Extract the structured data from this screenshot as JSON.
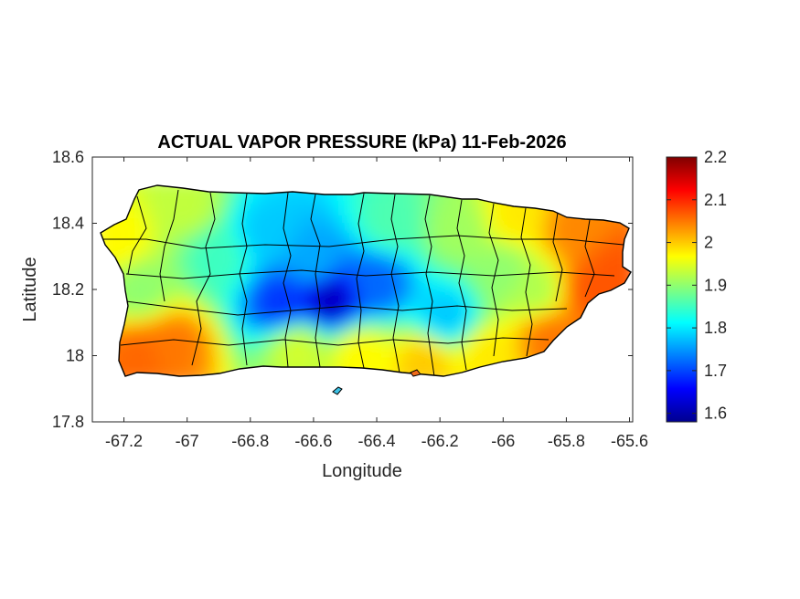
{
  "chart_data": {
    "type": "heatmap",
    "title": "ACTUAL VAPOR PRESSURE (kPa) 11-Feb-2026",
    "xlabel": "Longitude",
    "ylabel": "Latitude",
    "xlim": [
      -67.3,
      -65.59
    ],
    "ylim": [
      17.8,
      18.6
    ],
    "x_ticks": [
      -67.2,
      -67,
      -66.8,
      -66.6,
      -66.4,
      -66.2,
      -66,
      -65.8,
      -65.6
    ],
    "x_tick_labels": [
      "-67.2",
      "-67",
      "-66.8",
      "-66.6",
      "-66.4",
      "-66.2",
      "-66",
      "-65.8",
      "-65.6"
    ],
    "y_ticks": [
      17.8,
      18,
      18.2,
      18.4,
      18.6
    ],
    "y_tick_labels": [
      "17.8",
      "18",
      "18.2",
      "18.4",
      "18.6"
    ],
    "colorbar": {
      "colormap": "jet",
      "limits": [
        1.58,
        2.2
      ],
      "ticks": [
        1.6,
        1.7,
        1.8,
        1.9,
        2,
        2.1,
        2.2
      ],
      "tick_labels": [
        "1.6",
        "1.7",
        "1.8",
        "1.9",
        "2",
        "2.1",
        "2.2"
      ]
    },
    "grid": false,
    "legend": "none",
    "field_samples": [
      {
        "lon": -67.22,
        "lat": 18.35,
        "value": 1.97
      },
      {
        "lon": -67.0,
        "lat": 18.45,
        "value": 1.93
      },
      {
        "lon": -66.9,
        "lat": 18.3,
        "value": 1.85
      },
      {
        "lon": -66.75,
        "lat": 18.37,
        "value": 1.78
      },
      {
        "lon": -66.6,
        "lat": 18.28,
        "value": 1.76
      },
      {
        "lon": -66.55,
        "lat": 18.17,
        "value": 1.62
      },
      {
        "lon": -66.7,
        "lat": 18.16,
        "value": 1.69
      },
      {
        "lon": -66.4,
        "lat": 18.22,
        "value": 1.72
      },
      {
        "lon": -66.35,
        "lat": 18.4,
        "value": 1.86
      },
      {
        "lon": -66.15,
        "lat": 18.38,
        "value": 1.91
      },
      {
        "lon": -66.18,
        "lat": 18.12,
        "value": 1.78
      },
      {
        "lon": -65.95,
        "lat": 18.42,
        "value": 1.98
      },
      {
        "lon": -65.78,
        "lat": 18.38,
        "value": 2.04
      },
      {
        "lon": -65.65,
        "lat": 18.25,
        "value": 2.07
      },
      {
        "lon": -65.72,
        "lat": 18.2,
        "value": 2.07
      },
      {
        "lon": -65.85,
        "lat": 18.05,
        "value": 2.05
      },
      {
        "lon": -66.05,
        "lat": 18.0,
        "value": 1.98
      },
      {
        "lon": -66.25,
        "lat": 17.98,
        "value": 2.0
      },
      {
        "lon": -66.45,
        "lat": 18.0,
        "value": 1.97
      },
      {
        "lon": -66.65,
        "lat": 18.02,
        "value": 1.94
      },
      {
        "lon": -67.15,
        "lat": 18.0,
        "value": 2.06
      },
      {
        "lon": -67.05,
        "lat": 18.03,
        "value": 2.05
      },
      {
        "lon": -67.15,
        "lat": 18.2,
        "value": 1.9
      },
      {
        "lon": -66.0,
        "lat": 18.25,
        "value": 1.9
      },
      {
        "lon": -65.9,
        "lat": 18.2,
        "value": 1.92
      }
    ]
  }
}
